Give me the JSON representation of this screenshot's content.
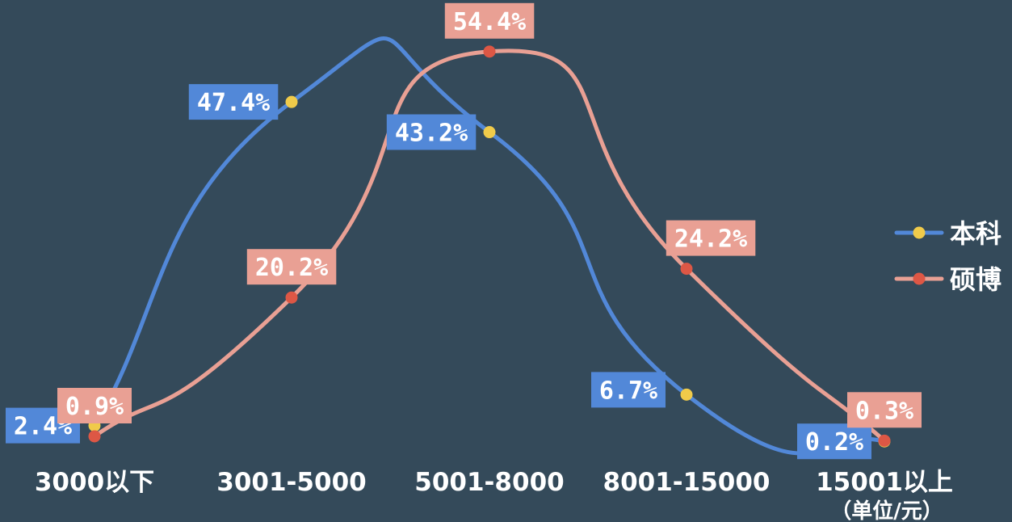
{
  "chart_data": {
    "type": "line",
    "title": "",
    "xlabel": "",
    "ylabel": "",
    "unit_note": "（单位/元）",
    "categories": [
      "3000以下",
      "3001-5000",
      "5001-8000",
      "8001-15000",
      "15001以上"
    ],
    "ylim": [
      0,
      60
    ],
    "grid": false,
    "legend_position": "right",
    "series": [
      {
        "name": "本科",
        "values": [
          2.4,
          47.4,
          43.2,
          6.7,
          0.2
        ],
        "labels": [
          "2.4%",
          "47.4%",
          "43.2%",
          "6.7%",
          "0.2%"
        ],
        "line_color": "#5288d8",
        "marker_color": "#f0cb4a",
        "label_bg": "#5288d8"
      },
      {
        "name": "硕博",
        "values": [
          0.9,
          20.2,
          54.4,
          24.2,
          0.3
        ],
        "labels": [
          "0.9%",
          "20.2%",
          "54.4%",
          "24.2%",
          "0.3%"
        ],
        "line_color": "#e9a094",
        "marker_color": "#dd5745",
        "label_bg": "#e9a094"
      }
    ]
  }
}
